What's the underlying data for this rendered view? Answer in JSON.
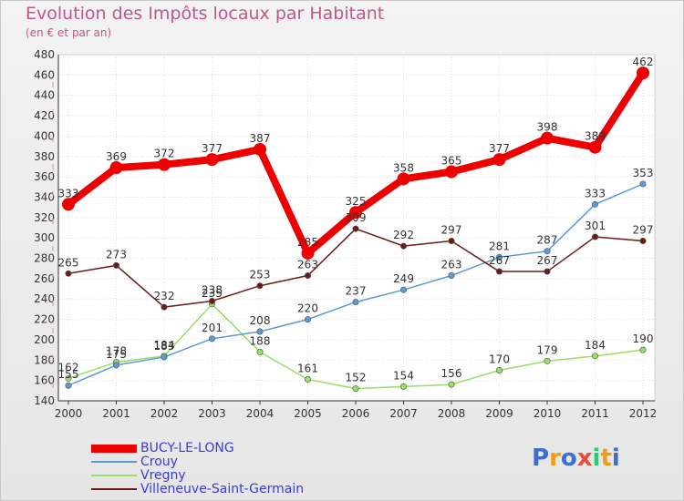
{
  "chart_data": {
    "type": "line",
    "title": "Evolution des Impôts locaux par Habitant",
    "subtitle": "(en € et par an)",
    "xlabel": "",
    "ylabel": "",
    "ylim": [
      140,
      480
    ],
    "y_ticks": [
      140,
      160,
      180,
      200,
      220,
      240,
      260,
      280,
      300,
      320,
      340,
      360,
      380,
      400,
      420,
      440,
      460,
      480
    ],
    "categories": [
      "2000",
      "2001",
      "2002",
      "2003",
      "2004",
      "2005",
      "2006",
      "2007",
      "2008",
      "2009",
      "2010",
      "2011",
      "2012"
    ],
    "series": [
      {
        "name": "BUCY-LE-LONG",
        "color": "#ee0000",
        "values": [
          333,
          369,
          372,
          377,
          387,
          285,
          325,
          358,
          365,
          377,
          398,
          389,
          462
        ]
      },
      {
        "name": "Crouy",
        "color": "#5b9bd5",
        "values": [
          155,
          175,
          183,
          201,
          208,
          220,
          237,
          249,
          263,
          281,
          287,
          333,
          353
        ]
      },
      {
        "name": "Vregny",
        "color": "#99dd66",
        "values": [
          162,
          178,
          184,
          235,
          188,
          161,
          152,
          154,
          156,
          170,
          179,
          184,
          190
        ]
      },
      {
        "name": "Villeneuve-Saint-Germain",
        "color": "#6b1a1a",
        "values": [
          265,
          273,
          232,
          238,
          253,
          263,
          309,
          292,
          297,
          267,
          267,
          301,
          297
        ]
      }
    ],
    "legend": "bottom-left"
  },
  "logo": {
    "text": "Proxiti",
    "letters": [
      {
        "ch": "P",
        "color": "#3b6fd1"
      },
      {
        "ch": "r",
        "color": "#f39c12"
      },
      {
        "ch": "o",
        "color": "#3b6fd1"
      },
      {
        "ch": "x",
        "color": "#e74c3c"
      },
      {
        "ch": "i",
        "color": "#2ecc71"
      },
      {
        "ch": "t",
        "color": "#f39c12"
      },
      {
        "ch": "i",
        "color": "#3b6fd1"
      }
    ]
  }
}
